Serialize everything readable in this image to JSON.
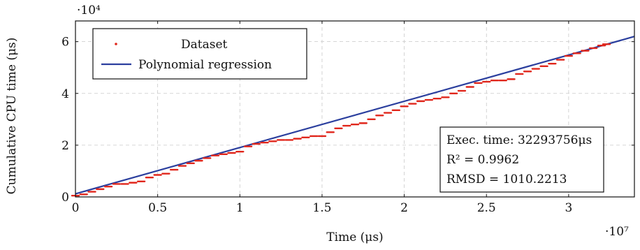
{
  "chart_data": {
    "type": "scatter",
    "xlabel": "Time (μs)",
    "ylabel": "Cumulative CPU time (μs)",
    "x_multiplier": "·10⁷",
    "y_multiplier": "·10⁴",
    "xlim": [
      0,
      3.4
    ],
    "ylim": [
      0,
      6.8
    ],
    "x_ticks": [
      0,
      0.5,
      1,
      1.5,
      2,
      2.5,
      3
    ],
    "x_tick_labels": [
      "0",
      "0.5",
      "1",
      "1.5",
      "2",
      "2.5",
      "3"
    ],
    "y_ticks": [
      0,
      2,
      4,
      6
    ],
    "y_tick_labels": [
      "0",
      "2",
      "4",
      "6"
    ],
    "grid": true,
    "legend_position": "top-left",
    "series": [
      {
        "name": "Dataset",
        "kind": "scatter",
        "color": "#e0261b",
        "x": [
          0,
          0.05,
          0.1,
          0.15,
          0.2,
          0.25,
          0.3,
          0.35,
          0.4,
          0.45,
          0.5,
          0.55,
          0.6,
          0.65,
          0.7,
          0.75,
          0.8,
          0.85,
          0.9,
          0.95,
          1.0,
          1.05,
          1.1,
          1.15,
          1.2,
          1.25,
          1.3,
          1.35,
          1.4,
          1.45,
          1.5,
          1.55,
          1.6,
          1.65,
          1.7,
          1.75,
          1.8,
          1.85,
          1.9,
          1.95,
          2.0,
          2.05,
          2.1,
          2.15,
          2.2,
          2.25,
          2.3,
          2.35,
          2.4,
          2.45,
          2.5,
          2.55,
          2.6,
          2.65,
          2.7,
          2.75,
          2.8,
          2.85,
          2.9,
          2.95,
          3.0,
          3.05,
          3.1,
          3.15,
          3.2,
          3.23
        ],
        "y": [
          0.05,
          0.1,
          0.2,
          0.3,
          0.4,
          0.5,
          0.5,
          0.55,
          0.6,
          0.75,
          0.85,
          0.9,
          1.05,
          1.2,
          1.3,
          1.4,
          1.5,
          1.6,
          1.65,
          1.7,
          1.75,
          1.95,
          2.05,
          2.1,
          2.15,
          2.2,
          2.2,
          2.25,
          2.3,
          2.35,
          2.35,
          2.5,
          2.65,
          2.75,
          2.8,
          2.85,
          3.0,
          3.15,
          3.25,
          3.35,
          3.5,
          3.6,
          3.7,
          3.75,
          3.8,
          3.85,
          4.0,
          4.1,
          4.25,
          4.4,
          4.45,
          4.5,
          4.5,
          4.55,
          4.75,
          4.85,
          4.95,
          5.05,
          5.15,
          5.3,
          5.45,
          5.55,
          5.65,
          5.75,
          5.85,
          5.9
        ]
      },
      {
        "name": "Polynomial regression",
        "kind": "line",
        "color": "#2b3f9e",
        "x": [
          0,
          3.4
        ],
        "y": [
          0.12,
          6.2
        ]
      }
    ],
    "annotation": {
      "lines": [
        "Exec. time: 32293756μs",
        "R² = 0.9962",
        "RMSD = 1010.2213"
      ],
      "position": "bottom-right"
    }
  }
}
